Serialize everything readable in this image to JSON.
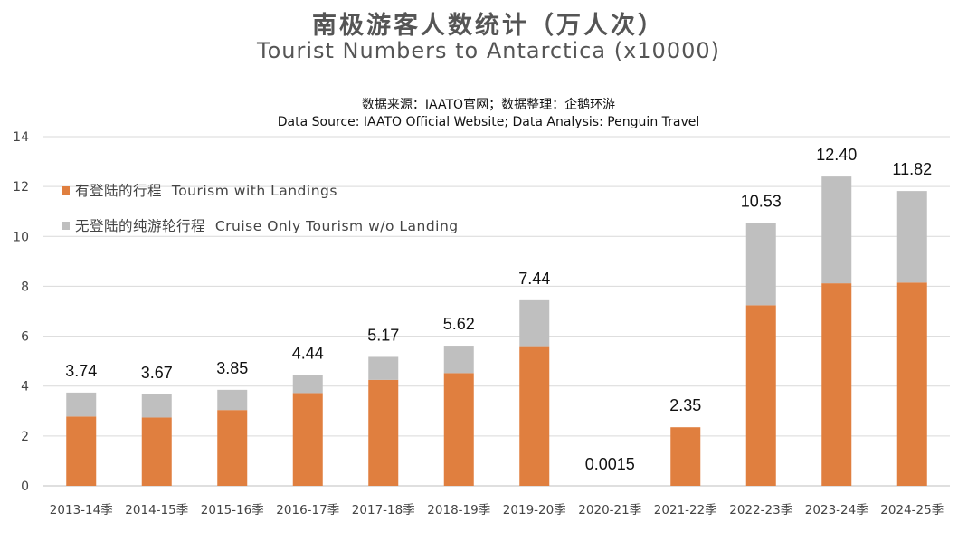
{
  "header": {
    "title_zh": "南极游客人数统计（万人次）",
    "title_en": "Tourist Numbers to Antarctica (x10000)",
    "source_zh": "数据来源：IAATO官网；数据整理：企鹅环游",
    "source_en": "Data Source: IAATO Official Website; Data Analysis: Penguin Travel"
  },
  "colors": {
    "landings": "#e07f3f",
    "cruise_only": "#bfbfbf",
    "grid": "#d9d9d9"
  },
  "chart_data": {
    "type": "bar",
    "stacked": true,
    "categories": [
      "2013-14季",
      "2014-15季",
      "2015-16季",
      "2016-17季",
      "2017-18季",
      "2018-19季",
      "2019-20季",
      "2020-21季",
      "2021-22季",
      "2022-23季",
      "2023-24季",
      "2024-25季"
    ],
    "series": [
      {
        "name": "有登陆的行程  Tourism with Landings",
        "values": [
          2.78,
          2.74,
          3.04,
          3.72,
          4.25,
          4.52,
          5.6,
          0.0015,
          2.35,
          7.24,
          8.12,
          8.15
        ]
      },
      {
        "name": "无登陆的纯游轮行程  Cruise Only Tourism w/o Landing",
        "values": [
          0.96,
          0.93,
          0.81,
          0.72,
          0.92,
          1.1,
          1.84,
          0,
          0,
          3.29,
          4.28,
          3.67
        ]
      }
    ],
    "totals": [
      "3.74",
      "3.67",
      "3.85",
      "4.44",
      "5.17",
      "5.62",
      "7.44",
      "0.0015",
      "2.35",
      "10.53",
      "12.40",
      "11.82"
    ],
    "yticks": [
      "0",
      "2",
      "4",
      "6",
      "8",
      "10",
      "12",
      "14"
    ],
    "ylim": [
      0,
      14
    ],
    "grid": true,
    "legend_position": "top-left"
  }
}
